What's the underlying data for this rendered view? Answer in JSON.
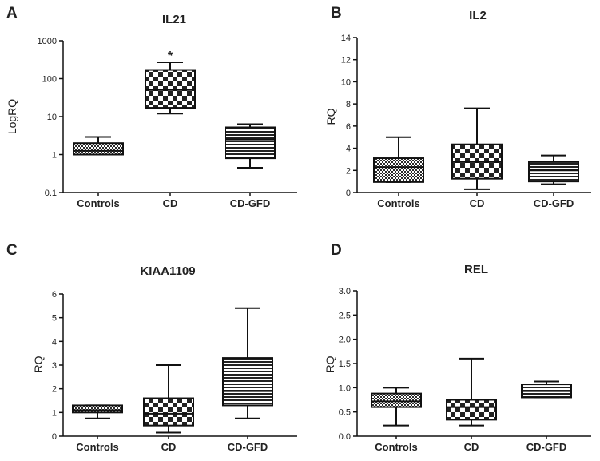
{
  "chart_data": [
    {
      "type": "box",
      "panel": "A",
      "title": "IL21",
      "ylabel": "LogRQ",
      "yscale": "log",
      "ylim": [
        0.1,
        1000
      ],
      "yticks": [
        0.1,
        1,
        10,
        100,
        1000
      ],
      "ytick_labels": [
        "0.1",
        "1",
        "10",
        "100",
        "1000"
      ],
      "categories": [
        "Controls",
        "CD",
        "CD-GFD"
      ],
      "boxes": [
        {
          "min": 1.0,
          "q1": 1.0,
          "median": 1.25,
          "q3": 2.0,
          "max": 2.9,
          "pattern": "dots"
        },
        {
          "min": 12,
          "q1": 17,
          "median": 50,
          "q3": 170,
          "max": 270,
          "pattern": "checker"
        },
        {
          "min": 0.45,
          "q1": 0.8,
          "median": 2.5,
          "q3": 5.2,
          "max": 6.3,
          "pattern": "stripes"
        }
      ],
      "annotations": [
        {
          "category": "CD",
          "text": "*"
        }
      ]
    },
    {
      "type": "box",
      "panel": "B",
      "title": "IL2",
      "ylabel": "RQ",
      "yscale": "linear",
      "ylim": [
        0,
        14
      ],
      "yticks": [
        0,
        2,
        4,
        6,
        8,
        10,
        12,
        14
      ],
      "ytick_labels": [
        "0",
        "2",
        "4",
        "6",
        "8",
        "10",
        "12",
        "14"
      ],
      "categories": [
        "Controls",
        "CD",
        "CD-GFD"
      ],
      "boxes": [
        {
          "min": 0.95,
          "q1": 0.95,
          "median": 2.3,
          "q3": 3.1,
          "max": 5.0,
          "pattern": "dots"
        },
        {
          "min": 0.3,
          "q1": 1.25,
          "median": 2.75,
          "q3": 4.35,
          "max": 7.6,
          "pattern": "checker"
        },
        {
          "min": 0.75,
          "q1": 1.0,
          "median": 2.0,
          "q3": 2.75,
          "max": 3.35,
          "pattern": "stripes"
        }
      ],
      "annotations": []
    },
    {
      "type": "box",
      "panel": "C",
      "title": "KIAA1109",
      "ylabel": "RQ",
      "yscale": "linear",
      "ylim": [
        0,
        6
      ],
      "yticks": [
        0,
        1,
        2,
        3,
        4,
        5,
        6
      ],
      "ytick_labels": [
        "0",
        "1",
        "2",
        "3",
        "4",
        "5",
        "6"
      ],
      "categories": [
        "Controls",
        "CD",
        "CD-GFD"
      ],
      "boxes": [
        {
          "min": 0.75,
          "q1": 1.0,
          "median": 1.1,
          "q3": 1.3,
          "max": 1.3,
          "pattern": "dots"
        },
        {
          "min": 0.15,
          "q1": 0.45,
          "median": 0.95,
          "q3": 1.6,
          "max": 3.0,
          "pattern": "checker"
        },
        {
          "min": 0.75,
          "q1": 1.3,
          "median": 1.9,
          "q3": 3.3,
          "max": 5.4,
          "pattern": "stripes"
        }
      ],
      "annotations": []
    },
    {
      "type": "box",
      "panel": "D",
      "title": "REL",
      "ylabel": "RQ",
      "yscale": "linear",
      "ylim": [
        0,
        3.0
      ],
      "yticks": [
        0,
        0.5,
        1.0,
        1.5,
        2.0,
        2.5,
        3.0
      ],
      "ytick_labels": [
        "0.0",
        "0.5",
        "1.0",
        "1.5",
        "2.0",
        "2.5",
        "3.0"
      ],
      "categories": [
        "Controls",
        "CD",
        "CD-GFD"
      ],
      "boxes": [
        {
          "min": 0.22,
          "q1": 0.6,
          "median": 0.72,
          "q3": 0.88,
          "max": 1.0,
          "pattern": "dots"
        },
        {
          "min": 0.22,
          "q1": 0.34,
          "median": 0.6,
          "q3": 0.75,
          "max": 1.6,
          "pattern": "checker"
        },
        {
          "min": 0.8,
          "q1": 0.8,
          "median": 0.93,
          "q3": 1.07,
          "max": 1.13,
          "pattern": "stripes"
        }
      ],
      "annotations": []
    }
  ]
}
